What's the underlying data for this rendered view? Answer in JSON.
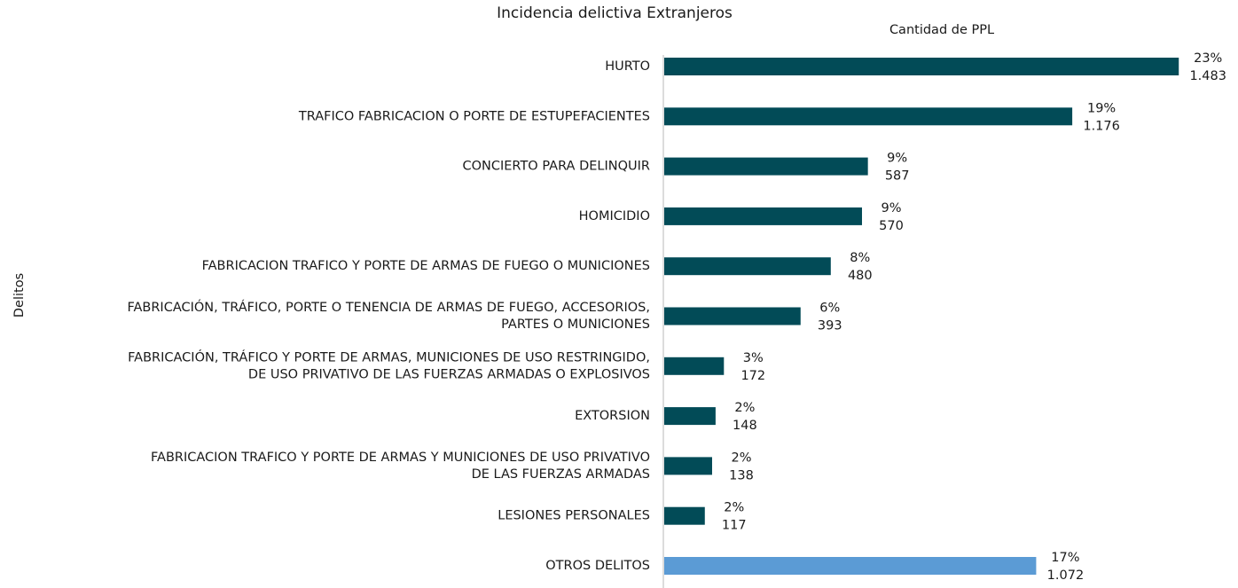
{
  "chart_data": {
    "type": "bar",
    "orientation": "horizontal",
    "title": "Incidencia delictiva Extranjeros",
    "x_label": "Cantidad de PPL",
    "y_label": "Delitos",
    "categories": [
      [
        "HURTO"
      ],
      [
        "TRAFICO FABRICACION O PORTE DE ESTUPEFACIENTES"
      ],
      [
        "CONCIERTO PARA DELINQUIR"
      ],
      [
        "HOMICIDIO"
      ],
      [
        "FABRICACION TRAFICO Y PORTE DE ARMAS DE FUEGO O MUNICIONES"
      ],
      [
        "FABRICACIÓN, TRÁFICO, PORTE O TENENCIA DE ARMAS DE FUEGO, ACCESORIOS,",
        "PARTES O MUNICIONES"
      ],
      [
        "FABRICACIÓN, TRÁFICO Y PORTE DE ARMAS, MUNICIONES DE USO RESTRINGIDO,",
        "DE USO PRIVATIVO DE LAS FUERZAS ARMADAS O EXPLOSIVOS"
      ],
      [
        "EXTORSION"
      ],
      [
        "FABRICACION  TRAFICO Y PORTE DE ARMAS Y MUNICIONES DE USO PRIVATIVO",
        "DE LAS FUERZAS ARMADAS"
      ],
      [
        "LESIONES PERSONALES"
      ],
      [
        "OTROS DELITOS"
      ]
    ],
    "values": [
      1483,
      1176,
      587,
      570,
      480,
      393,
      172,
      148,
      138,
      117,
      1072
    ],
    "value_labels": [
      "1.483",
      "1.176",
      "587",
      "570",
      "480",
      "393",
      "172",
      "148",
      "138",
      "117",
      "1.072"
    ],
    "shares": [
      23,
      19,
      9,
      9,
      8,
      6,
      3,
      2,
      2,
      2,
      17
    ],
    "share_labels": [
      "23%",
      "19%",
      "9%",
      "9%",
      "8%",
      "6%",
      "3%",
      "2%",
      "2%",
      "2%",
      "17%"
    ],
    "colors": [
      "#024b57",
      "#024b57",
      "#024b57",
      "#024b57",
      "#024b57",
      "#024b57",
      "#024b57",
      "#024b57",
      "#024b57",
      "#024b57",
      "#5b9bd5"
    ],
    "xlim": [
      0,
      1600
    ]
  }
}
